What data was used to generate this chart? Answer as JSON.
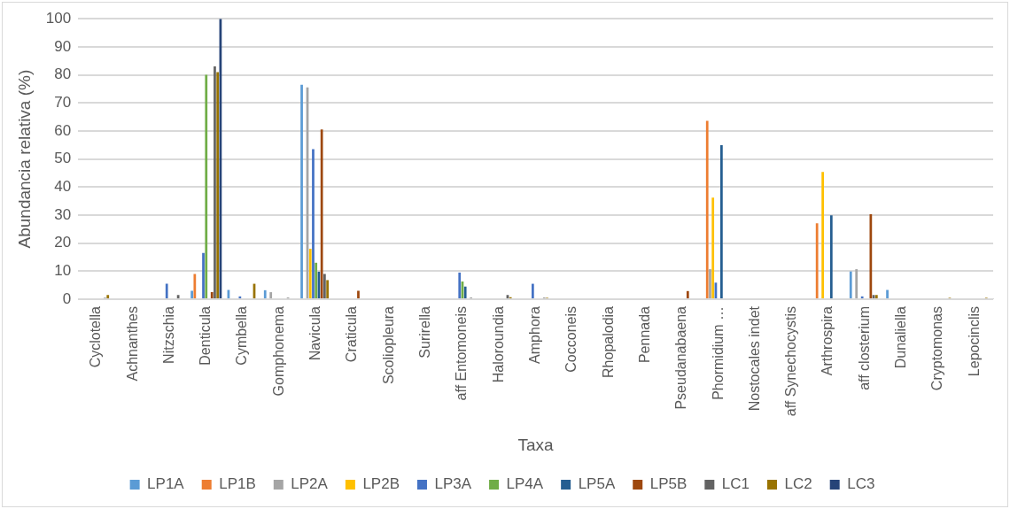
{
  "chart_data": {
    "type": "bar",
    "xlabel": "Taxa",
    "ylabel": "Abundancia relativa (%)",
    "categories": [
      "Cyclotella",
      "Achnanthes",
      "Nitzschia",
      "Denticula",
      "Cymbella",
      "Gomphonema",
      "Navicula",
      "Craticula",
      "Scoliopleura",
      "Surirella",
      "aff Entomoneis",
      "Haloroundia",
      "Amphora",
      "Cocconeis",
      "Rhopalodia",
      "Pennada",
      "Pseudanabaena",
      "Phormidium …",
      "Nostocales indet",
      "aff Synechocystis",
      "Arthrospira",
      "aff closterium",
      "Dunaliella",
      "Cryptomonas",
      "Lepocinclis"
    ],
    "series": [
      {
        "name": "LP1A",
        "color": "#5b9bd5",
        "values": [
          0,
          0,
          0,
          3,
          3.3,
          3.2,
          76.5,
          0,
          0,
          0,
          0,
          0,
          0,
          0,
          0,
          0,
          0,
          0,
          0,
          0,
          0,
          9.9,
          3.3,
          0,
          0
        ]
      },
      {
        "name": "LP1B",
        "color": "#ed7d31",
        "values": [
          0,
          0,
          0,
          9,
          0,
          0,
          0,
          0,
          0,
          0,
          0,
          0,
          0,
          0,
          0,
          0,
          0,
          63.6,
          0,
          0,
          27.1,
          0,
          0,
          0,
          0
        ]
      },
      {
        "name": "LP2A",
        "color": "#a5a5a5",
        "values": [
          0,
          0,
          0,
          0,
          0,
          2.5,
          75.5,
          0,
          0,
          0,
          0,
          0,
          0,
          0,
          0,
          0,
          0,
          10.7,
          0,
          0,
          0,
          10.7,
          0,
          0,
          0
        ]
      },
      {
        "name": "LP2B",
        "color": "#ffc000",
        "values": [
          0,
          0,
          0,
          0,
          0,
          0,
          18,
          0,
          0,
          0,
          0,
          0,
          0,
          0,
          0,
          0,
          0,
          36.2,
          0,
          0,
          45.4,
          0,
          0,
          0,
          0
        ]
      },
      {
        "name": "LP3A",
        "color": "#4472c4",
        "values": [
          0,
          0,
          5.5,
          16.5,
          1,
          0,
          53.5,
          0,
          0,
          0,
          9.5,
          0,
          5.5,
          0,
          0,
          0,
          0,
          5.9,
          0,
          0,
          0,
          1,
          0,
          0,
          0
        ]
      },
      {
        "name": "LP4A",
        "color": "#70ad47",
        "values": [
          0,
          0,
          0,
          80,
          0,
          0,
          13,
          0,
          0,
          0,
          6.3,
          0,
          0,
          0,
          0,
          0,
          0,
          0,
          0,
          0,
          0,
          0,
          0,
          0,
          0
        ]
      },
      {
        "name": "LP5A",
        "color": "#255e91",
        "values": [
          0,
          0,
          0,
          0,
          0,
          0,
          9.8,
          0,
          0,
          0,
          4.5,
          0,
          0,
          0,
          0,
          0,
          0,
          54.9,
          0,
          0,
          29.9,
          0,
          0,
          0,
          0
        ]
      },
      {
        "name": "LP5B",
        "color": "#9e480e",
        "values": [
          0,
          0,
          0,
          2.5,
          0,
          0,
          60.5,
          3,
          0,
          0,
          0,
          0,
          0,
          0,
          0,
          0,
          2.9,
          0,
          0,
          0,
          0,
          30.3,
          0,
          0,
          0
        ]
      },
      {
        "name": "LC1",
        "color": "#636363",
        "values": [
          0.5,
          0,
          1.5,
          83,
          0,
          0.5,
          9,
          0,
          0,
          0,
          0.5,
          1.5,
          0.5,
          0,
          0,
          0,
          0,
          0,
          0,
          0,
          0,
          1.5,
          0,
          0,
          0
        ]
      },
      {
        "name": "LC2",
        "color": "#997300",
        "values": [
          1.5,
          0,
          0,
          81,
          5.5,
          0,
          6.8,
          0,
          0,
          0,
          0,
          0.7,
          0.5,
          0,
          0,
          0,
          0,
          0,
          0,
          0,
          0,
          1.5,
          0,
          0.5,
          0.5
        ]
      },
      {
        "name": "LC3",
        "color": "#264478",
        "values": [
          0,
          0,
          0,
          100,
          0,
          0,
          0,
          0,
          0,
          0,
          0,
          0,
          0,
          0,
          0,
          0,
          0,
          0,
          0,
          0,
          0,
          0,
          0,
          0,
          0
        ]
      }
    ],
    "ylim": [
      0,
      100
    ],
    "yticks": [
      0,
      10,
      20,
      30,
      40,
      50,
      60,
      70,
      80,
      90,
      100
    ],
    "grid": "y",
    "legend": "bottom"
  }
}
